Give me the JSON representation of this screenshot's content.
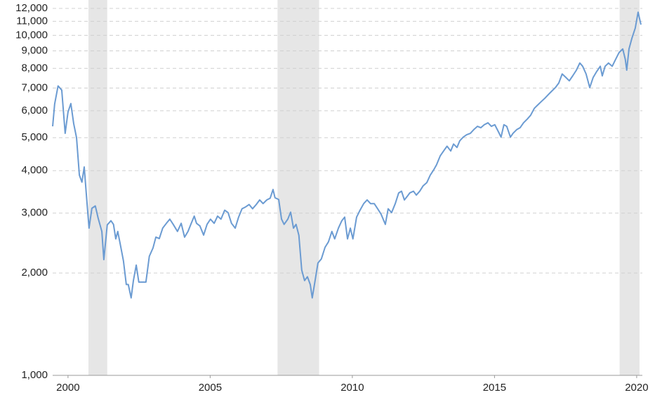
{
  "chart_data": {
    "type": "line",
    "log_scale": true,
    "grid": true,
    "xlim": [
      1999.46,
      2020.2
    ],
    "xticks": [
      2000,
      2005,
      2010,
      2015,
      2020
    ],
    "ylim": [
      1000,
      12000
    ],
    "yticks": [
      {
        "value": 1000,
        "label": "1,000"
      },
      {
        "value": 2000,
        "label": "2,000"
      },
      {
        "value": 3000,
        "label": "3,000"
      },
      {
        "value": 4000,
        "label": "4,000"
      },
      {
        "value": 5000,
        "label": "5,000"
      },
      {
        "value": 6000,
        "label": "6,000"
      },
      {
        "value": 7000,
        "label": "7,000"
      },
      {
        "value": 8000,
        "label": "8,000"
      },
      {
        "value": 9000,
        "label": "9,000"
      },
      {
        "value": 10000,
        "label": "10,000"
      },
      {
        "value": 11000,
        "label": "11,000"
      },
      {
        "value": 12000,
        "label": "12,000"
      }
    ],
    "shaded_periods": [
      [
        2000.72,
        2001.38
      ],
      [
        2007.37,
        2008.83
      ],
      [
        2019.4,
        2020.1
      ]
    ],
    "shade_color": "#e6e6e6",
    "x": [
      1999.46,
      1999.53,
      1999.65,
      1999.78,
      1999.9,
      2000.0,
      2000.1,
      2000.2,
      2000.3,
      2000.4,
      2000.49,
      2000.57,
      2000.67,
      2000.74,
      2000.84,
      2000.96,
      2001.06,
      2001.19,
      2001.26,
      2001.38,
      2001.51,
      2001.6,
      2001.68,
      2001.75,
      2001.85,
      2001.95,
      2002.05,
      2002.12,
      2002.22,
      2002.3,
      2002.4,
      2002.49,
      2002.62,
      2002.74,
      2002.86,
      2002.99,
      2003.09,
      2003.21,
      2003.33,
      2003.46,
      2003.58,
      2003.7,
      2003.85,
      2003.98,
      2004.1,
      2004.22,
      2004.32,
      2004.44,
      2004.52,
      2004.64,
      2004.77,
      2004.89,
      2005.01,
      2005.14,
      2005.26,
      2005.38,
      2005.51,
      2005.63,
      2005.75,
      2005.88,
      2006.0,
      2006.12,
      2006.25,
      2006.37,
      2006.49,
      2006.62,
      2006.74,
      2006.86,
      2006.99,
      2007.11,
      2007.21,
      2007.28,
      2007.41,
      2007.51,
      2007.6,
      2007.73,
      2007.83,
      2007.93,
      2008.02,
      2008.12,
      2008.22,
      2008.32,
      2008.42,
      2008.52,
      2008.59,
      2008.69,
      2008.79,
      2008.91,
      2009.04,
      2009.16,
      2009.28,
      2009.38,
      2009.51,
      2009.63,
      2009.73,
      2009.83,
      2009.93,
      2010.02,
      2010.15,
      2010.27,
      2010.4,
      2010.52,
      2010.64,
      2010.77,
      2010.89,
      2011.01,
      2011.16,
      2011.26,
      2011.38,
      2011.51,
      2011.63,
      2011.73,
      2011.83,
      2011.93,
      2012.02,
      2012.15,
      2012.25,
      2012.37,
      2012.49,
      2012.62,
      2012.74,
      2012.86,
      2012.96,
      2013.09,
      2013.21,
      2013.33,
      2013.46,
      2013.56,
      2013.68,
      2013.78,
      2013.9,
      2014.02,
      2014.15,
      2014.27,
      2014.4,
      2014.52,
      2014.64,
      2014.77,
      2014.89,
      2015.01,
      2015.14,
      2015.23,
      2015.33,
      2015.43,
      2015.56,
      2015.65,
      2015.78,
      2015.9,
      2016.02,
      2016.15,
      2016.27,
      2016.4,
      2016.52,
      2016.64,
      2016.77,
      2016.89,
      2017.01,
      2017.14,
      2017.26,
      2017.38,
      2017.51,
      2017.63,
      2017.75,
      2017.88,
      2018.0,
      2018.1,
      2018.22,
      2018.35,
      2018.47,
      2018.59,
      2018.72,
      2018.79,
      2018.89,
      2019.01,
      2019.14,
      2019.26,
      2019.38,
      2019.51,
      2019.6,
      2019.65,
      2019.73,
      2019.83,
      2019.95,
      2020.05,
      2020.15
    ],
    "series": [
      {
        "color": "#6b9bd2",
        "values": [
          5400,
          6280,
          7100,
          6900,
          5150,
          5950,
          6300,
          5500,
          5000,
          3880,
          3700,
          4100,
          3200,
          2710,
          3100,
          3150,
          2900,
          2650,
          2190,
          2770,
          2850,
          2780,
          2520,
          2650,
          2400,
          2170,
          1850,
          1850,
          1690,
          1900,
          2110,
          1880,
          1880,
          1880,
          2240,
          2370,
          2550,
          2525,
          2710,
          2800,
          2880,
          2780,
          2650,
          2800,
          2550,
          2650,
          2780,
          2940,
          2800,
          2750,
          2585,
          2780,
          2880,
          2800,
          2940,
          2880,
          3060,
          3010,
          2800,
          2710,
          2920,
          3090,
          3130,
          3180,
          3090,
          3180,
          3280,
          3200,
          3280,
          3320,
          3520,
          3330,
          3290,
          2880,
          2780,
          2880,
          3020,
          2710,
          2780,
          2580,
          2040,
          1900,
          1950,
          1850,
          1690,
          1900,
          2140,
          2200,
          2380,
          2470,
          2650,
          2520,
          2710,
          2850,
          2920,
          2520,
          2710,
          2520,
          2920,
          3060,
          3200,
          3280,
          3200,
          3200,
          3090,
          2980,
          2780,
          3090,
          3010,
          3200,
          3440,
          3480,
          3280,
          3360,
          3440,
          3480,
          3390,
          3480,
          3610,
          3690,
          3880,
          4020,
          4160,
          4420,
          4570,
          4720,
          4570,
          4790,
          4680,
          4900,
          5020,
          5100,
          5150,
          5280,
          5400,
          5350,
          5460,
          5530,
          5400,
          5460,
          5200,
          5020,
          5460,
          5400,
          5020,
          5150,
          5280,
          5350,
          5530,
          5670,
          5820,
          6100,
          6240,
          6380,
          6530,
          6690,
          6850,
          7020,
          7240,
          7700,
          7520,
          7350,
          7600,
          7900,
          8290,
          8110,
          7700,
          7020,
          7520,
          7820,
          8110,
          7600,
          8110,
          8290,
          8110,
          8500,
          8900,
          9120,
          8500,
          7900,
          9120,
          9790,
          10500,
          11700,
          10750
        ]
      }
    ]
  }
}
